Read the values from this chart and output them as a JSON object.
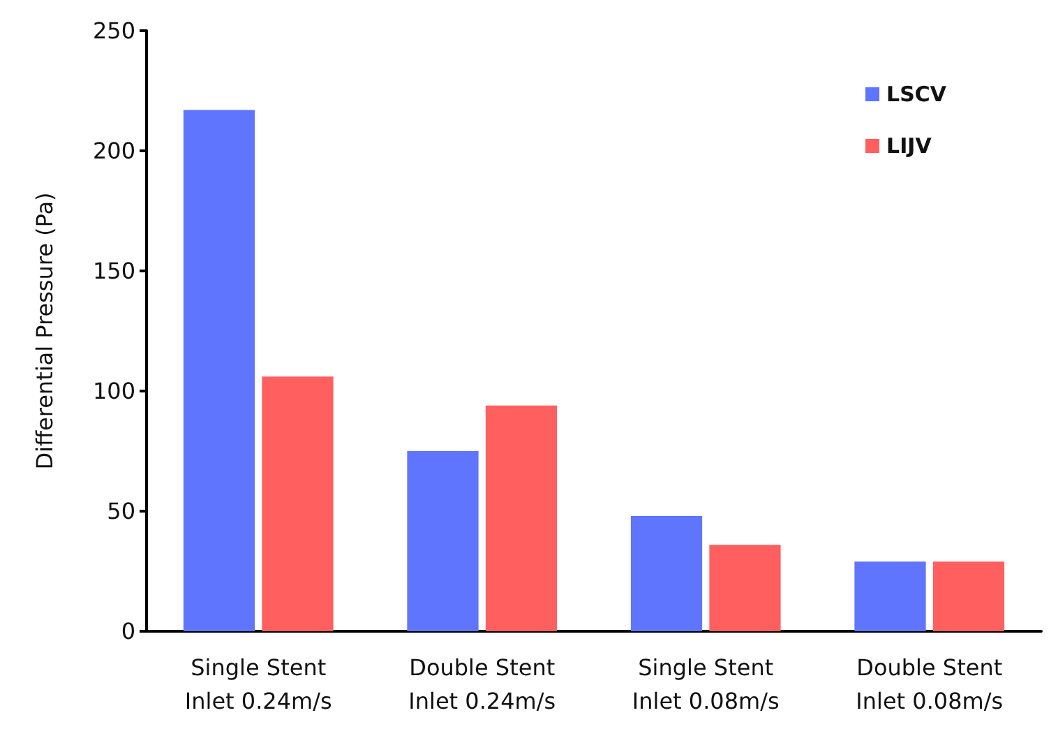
{
  "chart_data": {
    "type": "bar",
    "ylabel": "Differential Pressure (Pa)",
    "categories": [
      "Single Stent\nInlet 0.24m/s",
      "Double Stent\nInlet 0.24m/s",
      "Single Stent\nInlet 0.08m/s",
      "Double Stent\nInlet 0.08m/s"
    ],
    "series": [
      {
        "name": "LSCV",
        "color": "#5f75fd",
        "values": [
          217,
          75,
          48,
          29
        ]
      },
      {
        "name": "LIJV",
        "color": "#ff5f5f",
        "values": [
          106,
          94,
          36,
          29
        ]
      }
    ],
    "ylim": [
      0,
      250
    ],
    "yticks": [
      0,
      50,
      100,
      150,
      200,
      250
    ],
    "grid": false,
    "legend": "top right"
  }
}
